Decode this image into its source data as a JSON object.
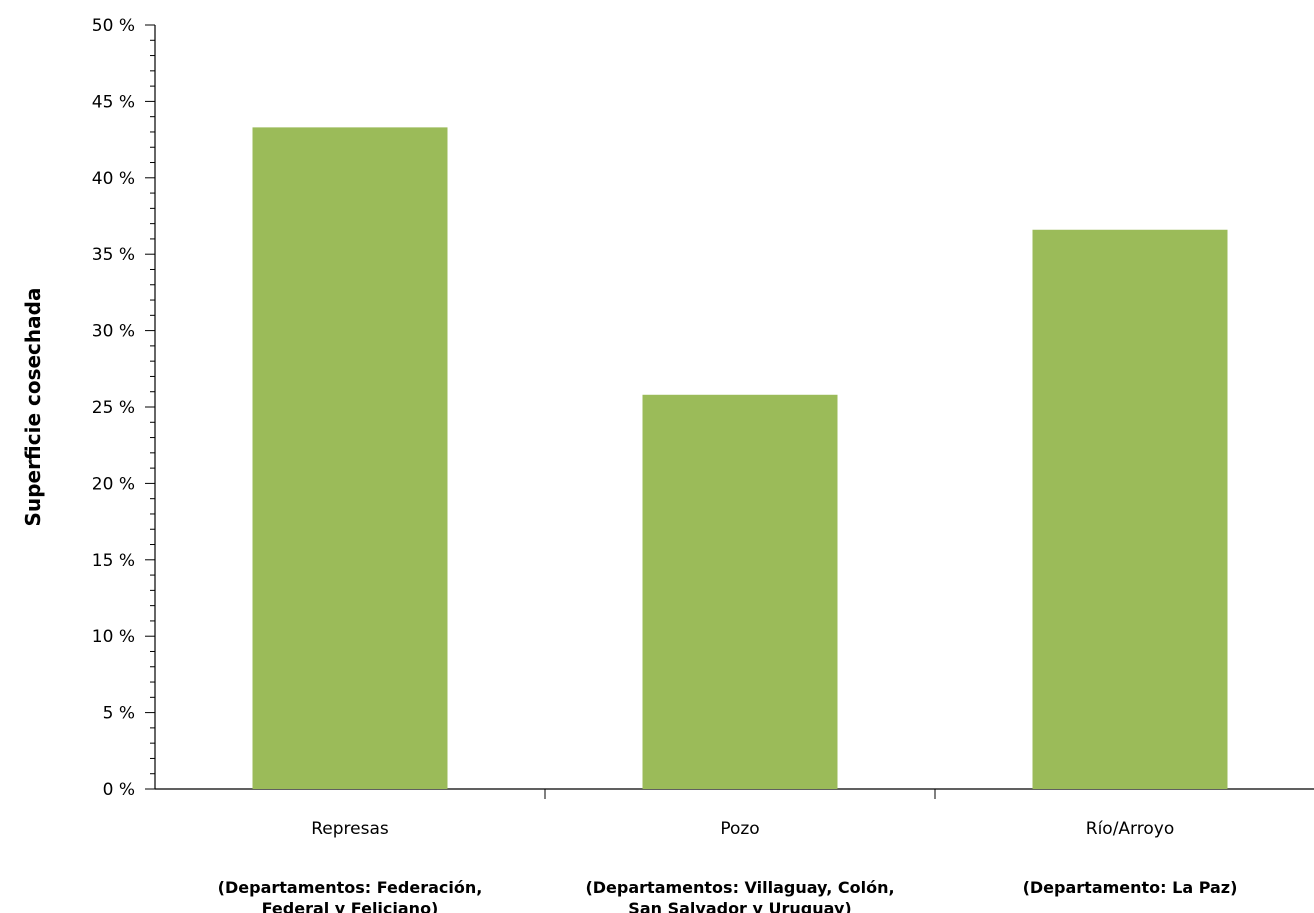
{
  "chart_data": {
    "type": "bar",
    "categories": [
      "Represas",
      "Pozo",
      "Río/Arroyo"
    ],
    "category_notes": [
      [
        "(Departamentos: Federación,",
        "Federal y Feliciano)"
      ],
      [
        "(Departamentos: Villaguay, Colón,",
        "San Salvador y Uruguay)"
      ],
      [
        "(Departamento: La Paz)"
      ]
    ],
    "values": [
      43.3,
      25.8,
      36.6
    ],
    "ylabel": "Superficie cosechada",
    "ylim": [
      0,
      50
    ],
    "yticks": [
      0,
      5,
      10,
      15,
      20,
      25,
      30,
      35,
      40,
      45,
      50
    ],
    "ytick_labels": [
      "0 %",
      "5 %",
      "10 %",
      "15 %",
      "20 %",
      "25 %",
      "30 %",
      "35 %",
      "40 %",
      "45 %",
      "50 %"
    ],
    "bar_color": "#9bbb59",
    "grid": false,
    "legend": "none"
  }
}
